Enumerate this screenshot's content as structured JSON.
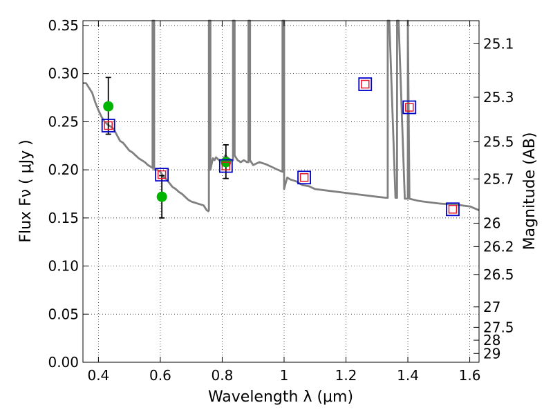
{
  "chart_data": {
    "type": "scatter",
    "title": "",
    "xlabel": "Wavelength  λ (μm)",
    "ylabel": "Flux  Fν  ( μJy )",
    "ylabel_right": "Magnitude (AB)",
    "xlim": [
      0.35,
      1.63
    ],
    "ylim": [
      0.0,
      0.355
    ],
    "grid": true,
    "x_ticks": [
      0.4,
      0.6,
      0.8,
      1.0,
      1.2,
      1.4,
      1.6
    ],
    "x_tick_labels": [
      "0.4",
      "0.6",
      "0.8",
      "1",
      "1.2",
      "1.4",
      "1.6"
    ],
    "y_ticks": [
      0.0,
      0.05,
      0.1,
      0.15,
      0.2,
      0.25,
      0.3,
      0.35
    ],
    "y_tick_labels": [
      "0.00",
      "0.05",
      "0.10",
      "0.15",
      "0.20",
      "0.25",
      "0.30",
      "0.35"
    ],
    "mag_ticks": [
      "25.1",
      "25.3",
      "25.5",
      "25.7",
      "26",
      "26.2",
      "26.5",
      "27",
      "27.5",
      "28",
      "29"
    ],
    "colors": {
      "spectrum": "#808080",
      "observed": "#00b400",
      "errorbar": "#000000",
      "model_outer": "#0000cc",
      "model_inner": "#e8142d",
      "grid": "#000000"
    },
    "series": [
      {
        "kind": "spectrum",
        "x": [
          0.35,
          0.36,
          0.37,
          0.38,
          0.39,
          0.4,
          0.41,
          0.42,
          0.43,
          0.44,
          0.45,
          0.46,
          0.47,
          0.48,
          0.49,
          0.5,
          0.51,
          0.52,
          0.53,
          0.54,
          0.55,
          0.56,
          0.57,
          0.575,
          0.575,
          0.58,
          0.58,
          0.59,
          0.6,
          0.61,
          0.62,
          0.63,
          0.64,
          0.65,
          0.66,
          0.67,
          0.68,
          0.69,
          0.7,
          0.71,
          0.72,
          0.73,
          0.74,
          0.75,
          0.755,
          0.757,
          0.757,
          0.762,
          0.762,
          0.765,
          0.77,
          0.775,
          0.78,
          0.79,
          0.8,
          0.81,
          0.82,
          0.83,
          0.835,
          0.835,
          0.84,
          0.84,
          0.85,
          0.86,
          0.87,
          0.88,
          0.885,
          0.885,
          0.89,
          0.89,
          0.9,
          0.92,
          0.94,
          0.96,
          0.98,
          0.995,
          0.995,
          1.0,
          1.0,
          1.005,
          1.01,
          1.02,
          1.04,
          1.06,
          1.08,
          1.1,
          1.15,
          1.2,
          1.25,
          1.3,
          1.33,
          1.335,
          1.335,
          1.34,
          1.36,
          1.365,
          1.365,
          1.37,
          1.39,
          1.4,
          1.4,
          1.405,
          1.43,
          1.45,
          1.5,
          1.55,
          1.6,
          1.63
        ],
        "y": [
          0.29,
          0.29,
          0.285,
          0.28,
          0.27,
          0.262,
          0.255,
          0.25,
          0.247,
          0.245,
          0.242,
          0.236,
          0.23,
          0.228,
          0.224,
          0.22,
          0.218,
          0.215,
          0.212,
          0.21,
          0.208,
          0.205,
          0.203,
          0.202,
          0.355,
          0.355,
          0.2,
          0.2,
          0.198,
          0.193,
          0.19,
          0.186,
          0.182,
          0.18,
          0.177,
          0.175,
          0.172,
          0.169,
          0.167,
          0.166,
          0.165,
          0.164,
          0.163,
          0.158,
          0.157,
          0.158,
          0.355,
          0.355,
          0.2,
          0.205,
          0.212,
          0.21,
          0.213,
          0.21,
          0.209,
          0.215,
          0.212,
          0.21,
          0.21,
          0.355,
          0.355,
          0.215,
          0.21,
          0.208,
          0.21,
          0.208,
          0.208,
          0.355,
          0.355,
          0.21,
          0.205,
          0.208,
          0.206,
          0.203,
          0.2,
          0.198,
          0.355,
          0.355,
          0.18,
          0.186,
          0.192,
          0.19,
          0.188,
          0.184,
          0.183,
          0.18,
          0.178,
          0.176,
          0.174,
          0.172,
          0.171,
          0.171,
          0.355,
          0.355,
          0.171,
          0.171,
          0.355,
          0.355,
          0.17,
          0.17,
          0.355,
          0.17,
          0.168,
          0.167,
          0.165,
          0.164,
          0.162,
          0.158
        ]
      },
      {
        "kind": "observed",
        "x": [
          0.432,
          0.605,
          0.812
        ],
        "y": [
          0.266,
          0.172,
          0.208
        ],
        "yerr_low": [
          0.029,
          0.022,
          0.017
        ],
        "yerr_high": [
          0.03,
          0.022,
          0.018
        ]
      },
      {
        "kind": "model",
        "x": [
          0.432,
          0.605,
          0.812,
          1.065,
          1.262,
          1.405,
          1.545
        ],
        "y": [
          0.246,
          0.195,
          0.204,
          0.192,
          0.289,
          0.265,
          0.159
        ]
      }
    ]
  }
}
